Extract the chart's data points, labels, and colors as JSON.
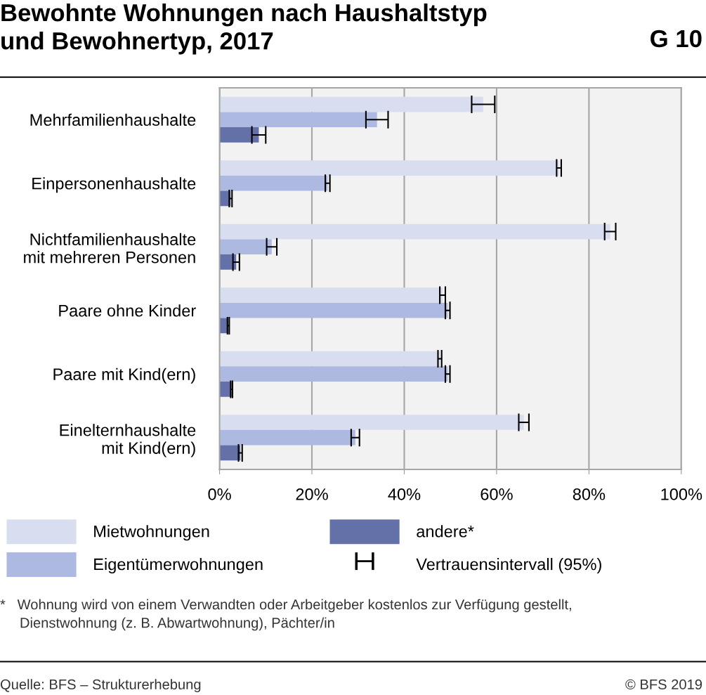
{
  "chart_data": {
    "type": "bar",
    "orientation": "horizontal",
    "title": "Bewohnte Wohnungen nach Haushaltstyp\nund Bewohnertyp, 2017",
    "subtitle": "G 10",
    "categories": [
      "Mehrfamilienhaushalte",
      "Einpersonenhaushalte",
      "Nichtfamilienhaushalte\nmit mehreren Personen",
      "Paare ohne Kinder",
      "Paare mit Kind(ern)",
      "Einelternhaushalte\nmit Kind(ern)"
    ],
    "series": [
      {
        "name": "Mietwohnungen",
        "color": "#d9ddf0",
        "values": [
          57.1,
          73.5,
          84.6,
          48.3,
          47.7,
          65.9
        ],
        "errors": [
          2.5,
          0.5,
          1.2,
          0.6,
          0.4,
          1.1
        ]
      },
      {
        "name": "Eigentümerwohnungen",
        "color": "#adb9e0",
        "values": [
          34.1,
          23.4,
          11.3,
          49.4,
          49.4,
          29.4
        ],
        "errors": [
          2.4,
          0.5,
          1.1,
          0.5,
          0.5,
          0.9
        ]
      },
      {
        "name": "andere*",
        "color": "#6470a8",
        "values": [
          8.5,
          2.4,
          3.6,
          1.9,
          2.6,
          4.5
        ],
        "errors": [
          1.5,
          0.3,
          0.7,
          0.2,
          0.2,
          0.4
        ]
      }
    ],
    "xlim": [
      0,
      100
    ],
    "xticks": [
      {
        "value": 0,
        "label": "0%"
      },
      {
        "value": 20,
        "label": "20%"
      },
      {
        "value": 40,
        "label": "40%"
      },
      {
        "value": 60,
        "label": "60%"
      },
      {
        "value": 80,
        "label": "80%"
      },
      {
        "value": 100,
        "label": "100%"
      }
    ],
    "grid": "x",
    "legend": "bottom",
    "annotations": [
      "Vertrauensintervall (95%)",
      "*   Wohnung wird von einem Verwandten oder Arbeitgeber kostenlos zur Verfügung gestellt,\n     Dienstwohnung (z. B. Abwartwohnung), Pächter/in",
      "Quelle: BFS – Strukturerhebung",
      "© BFS 2019"
    ]
  }
}
